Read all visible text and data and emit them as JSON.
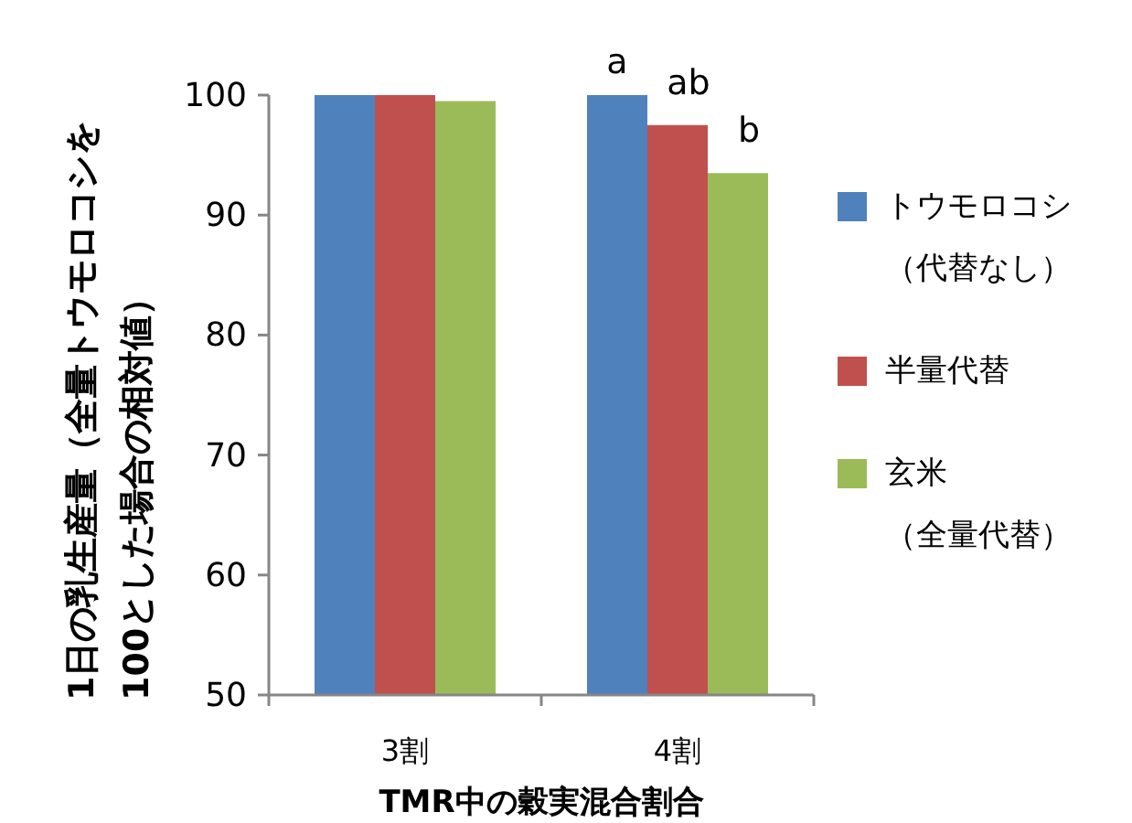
{
  "chart_data": {
    "type": "bar",
    "ylabel": "1日の乳生産量（全量トウモロコシを100とした場合の相対値）",
    "xlabel": "TMR中の穀実混合割合",
    "categories": [
      "3割",
      "4割"
    ],
    "series": [
      {
        "name": "トウモロコシ（代替なし）",
        "color": "#4f81bd",
        "values": [
          100,
          100
        ]
      },
      {
        "name": "半量代替",
        "color": "#c0504d",
        "values": [
          100,
          97.5
        ]
      },
      {
        "name": "玄米（全量代替）",
        "color": "#9bbb59",
        "values": [
          99.5,
          93.5
        ]
      }
    ],
    "ylim": [
      50,
      100
    ],
    "yticks": [
      50,
      60,
      70,
      80,
      90,
      100
    ],
    "grid": false,
    "legend": "right",
    "annotations": [
      "a",
      "ab",
      "b"
    ]
  }
}
